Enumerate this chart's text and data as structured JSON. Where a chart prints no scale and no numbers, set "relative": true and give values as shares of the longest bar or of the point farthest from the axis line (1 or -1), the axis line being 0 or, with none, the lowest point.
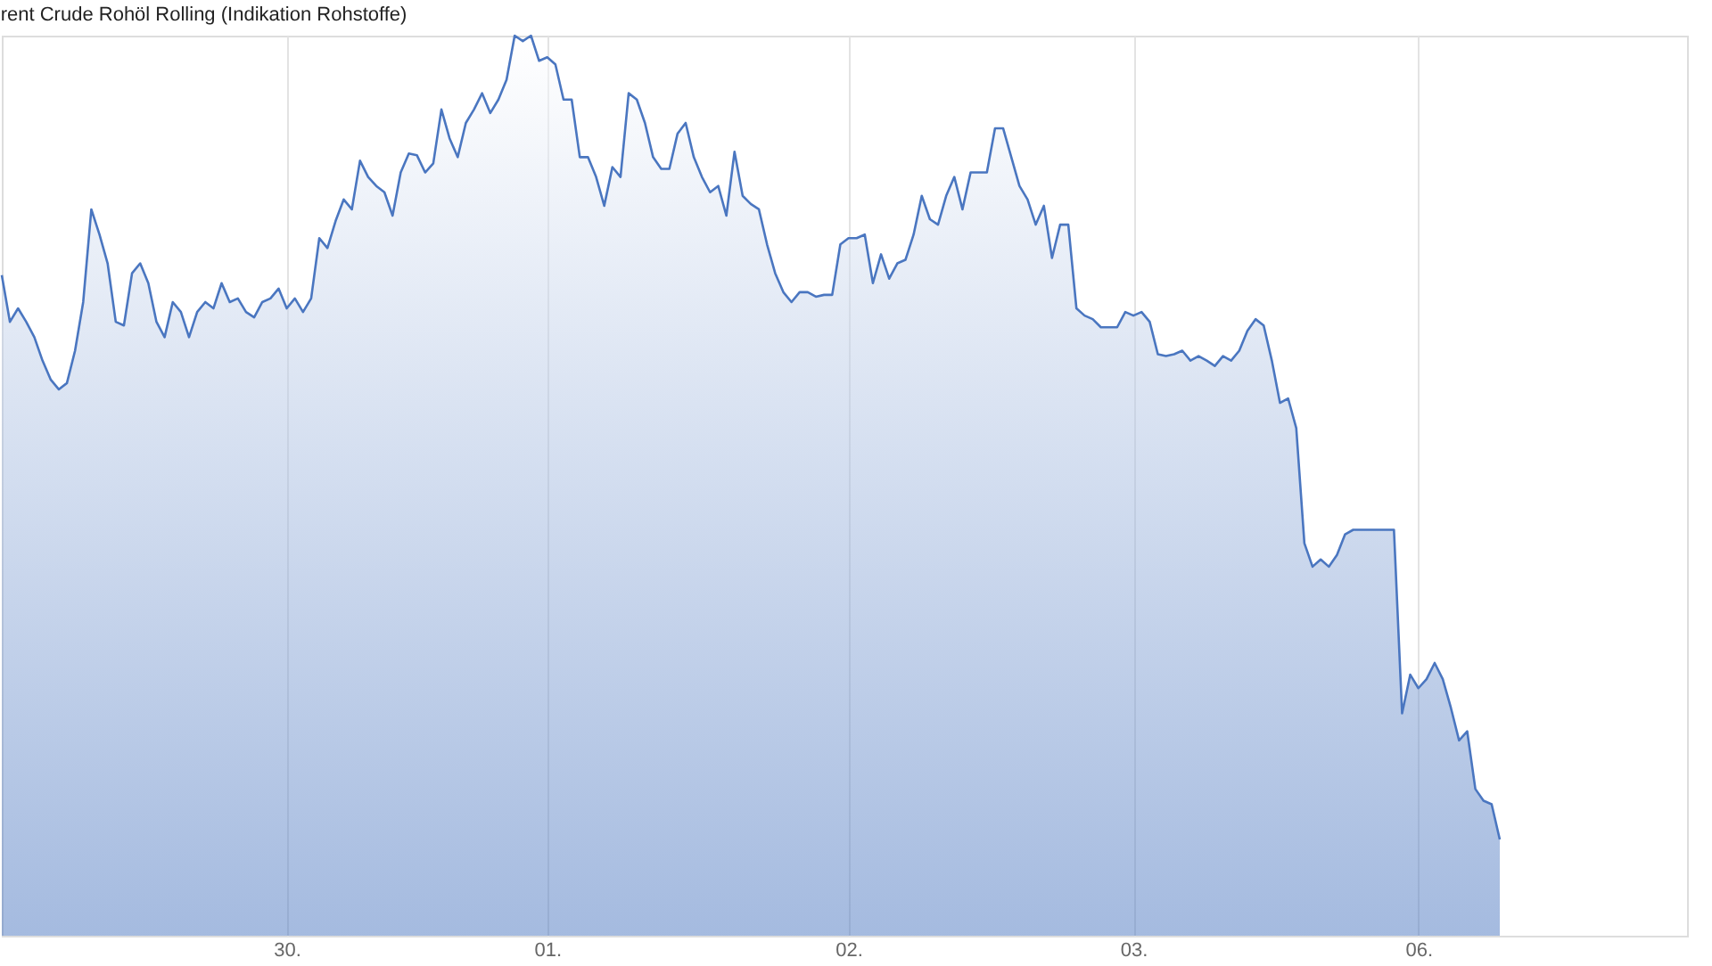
{
  "chart_data": {
    "type": "area",
    "title": "rent Crude Rohöl Rolling (Indikation Rohstoffe)",
    "relative": true,
    "grid": "x",
    "legend": false,
    "categories": [
      null,
      null,
      null,
      null,
      null,
      null,
      null,
      null,
      null,
      null,
      null,
      null,
      null,
      null,
      null,
      null,
      null,
      null,
      null,
      null,
      null,
      null,
      null,
      null,
      null,
      null,
      null,
      null,
      null,
      null,
      null,
      null,
      null,
      null,
      null,
      "30.",
      null,
      null,
      null,
      null,
      null,
      null,
      null,
      null,
      null,
      null,
      null,
      null,
      null,
      null,
      null,
      null,
      null,
      null,
      null,
      null,
      null,
      null,
      null,
      null,
      null,
      null,
      null,
      null,
      null,
      null,
      null,
      "01.",
      null,
      null,
      null,
      null,
      null,
      null,
      null,
      null,
      null,
      null,
      null,
      null,
      null,
      null,
      null,
      null,
      null,
      null,
      null,
      null,
      null,
      null,
      null,
      null,
      null,
      null,
      null,
      null,
      null,
      null,
      null,
      null,
      null,
      null,
      null,
      null,
      "02.",
      null,
      null,
      null,
      null,
      null,
      null,
      null,
      null,
      null,
      null,
      null,
      null,
      null,
      null,
      null,
      null,
      null,
      null,
      null,
      null,
      null,
      null,
      null,
      null,
      null,
      null,
      null,
      null,
      null,
      null,
      null,
      null,
      null,
      null,
      "03.",
      null,
      null,
      null,
      null,
      null,
      null,
      null,
      null,
      null,
      null,
      null,
      null,
      null,
      null,
      null,
      null,
      null,
      null,
      null,
      null,
      null,
      null,
      null,
      null,
      null,
      null,
      null,
      null,
      null,
      null,
      null,
      null,
      null,
      null,
      "06.",
      null,
      null,
      null,
      null,
      null,
      null,
      null,
      null,
      null,
      null,
      null,
      null,
      null,
      null,
      null,
      null,
      null,
      null,
      null,
      null,
      null,
      null,
      null,
      null,
      null,
      null,
      null,
      null,
      null,
      null,
      null,
      null,
      null
    ],
    "series": [
      {
        "color": "#4a76c0",
        "values": [
          0.734,
          0.682,
          0.697,
          0.682,
          0.665,
          0.639,
          0.618,
          0.607,
          0.614,
          0.65,
          0.704,
          0.807,
          0.779,
          0.747,
          0.682,
          0.678,
          0.736,
          0.747,
          0.725,
          0.682,
          0.665,
          0.704,
          0.693,
          0.665,
          0.693,
          0.704,
          0.697,
          0.725,
          0.704,
          0.708,
          0.693,
          0.687,
          0.704,
          0.708,
          0.719,
          0.697,
          0.708,
          0.693,
          0.708,
          0.775,
          0.764,
          0.794,
          0.818,
          0.807,
          0.861,
          0.843,
          0.833,
          0.826,
          0.8,
          0.848,
          0.869,
          0.867,
          0.848,
          0.858,
          0.918,
          0.886,
          0.865,
          0.903,
          0.918,
          0.936,
          0.914,
          0.929,
          0.951,
          1,
          0.994,
          1,
          0.972,
          0.976,
          0.968,
          0.929,
          0.929,
          0.865,
          0.865,
          0.843,
          0.811,
          0.854,
          0.843,
          0.936,
          0.929,
          0.903,
          0.865,
          0.852,
          0.852,
          0.891,
          0.903,
          0.865,
          0.843,
          0.826,
          0.833,
          0.8,
          0.871,
          0.822,
          0.813,
          0.807,
          0.768,
          0.736,
          0.715,
          0.704,
          0.715,
          0.715,
          0.71,
          0.712,
          0.712,
          0.768,
          0.775,
          0.775,
          0.779,
          0.725,
          0.757,
          0.73,
          0.747,
          0.751,
          0.779,
          0.822,
          0.796,
          0.79,
          0.822,
          0.843,
          0.807,
          0.848,
          0.848,
          0.848,
          0.897,
          0.897,
          0.865,
          0.833,
          0.818,
          0.79,
          0.811,
          0.753,
          0.79,
          0.79,
          0.697,
          0.689,
          0.685,
          0.676,
          0.676,
          0.676,
          0.693,
          0.689,
          0.693,
          0.682,
          0.646,
          0.644,
          0.646,
          0.65,
          0.639,
          0.644,
          0.639,
          0.633,
          0.644,
          0.639,
          0.65,
          0.672,
          0.685,
          0.678,
          0.639,
          0.592,
          0.597,
          0.564,
          0.436,
          0.41,
          0.418,
          0.41,
          0.423,
          0.446,
          0.451,
          0.451,
          0.451,
          0.451,
          0.451,
          0.451,
          0.247,
          0.29,
          0.275,
          0.285,
          0.303,
          0.285,
          0.253,
          0.217,
          0.227,
          0.163,
          0.15,
          0.146,
          0.107,
          null,
          null,
          null,
          null,
          null,
          null,
          null,
          null,
          null,
          null,
          null,
          null,
          null,
          null,
          null,
          null,
          null,
          null,
          null,
          null,
          null,
          null,
          null
        ]
      }
    ]
  }
}
